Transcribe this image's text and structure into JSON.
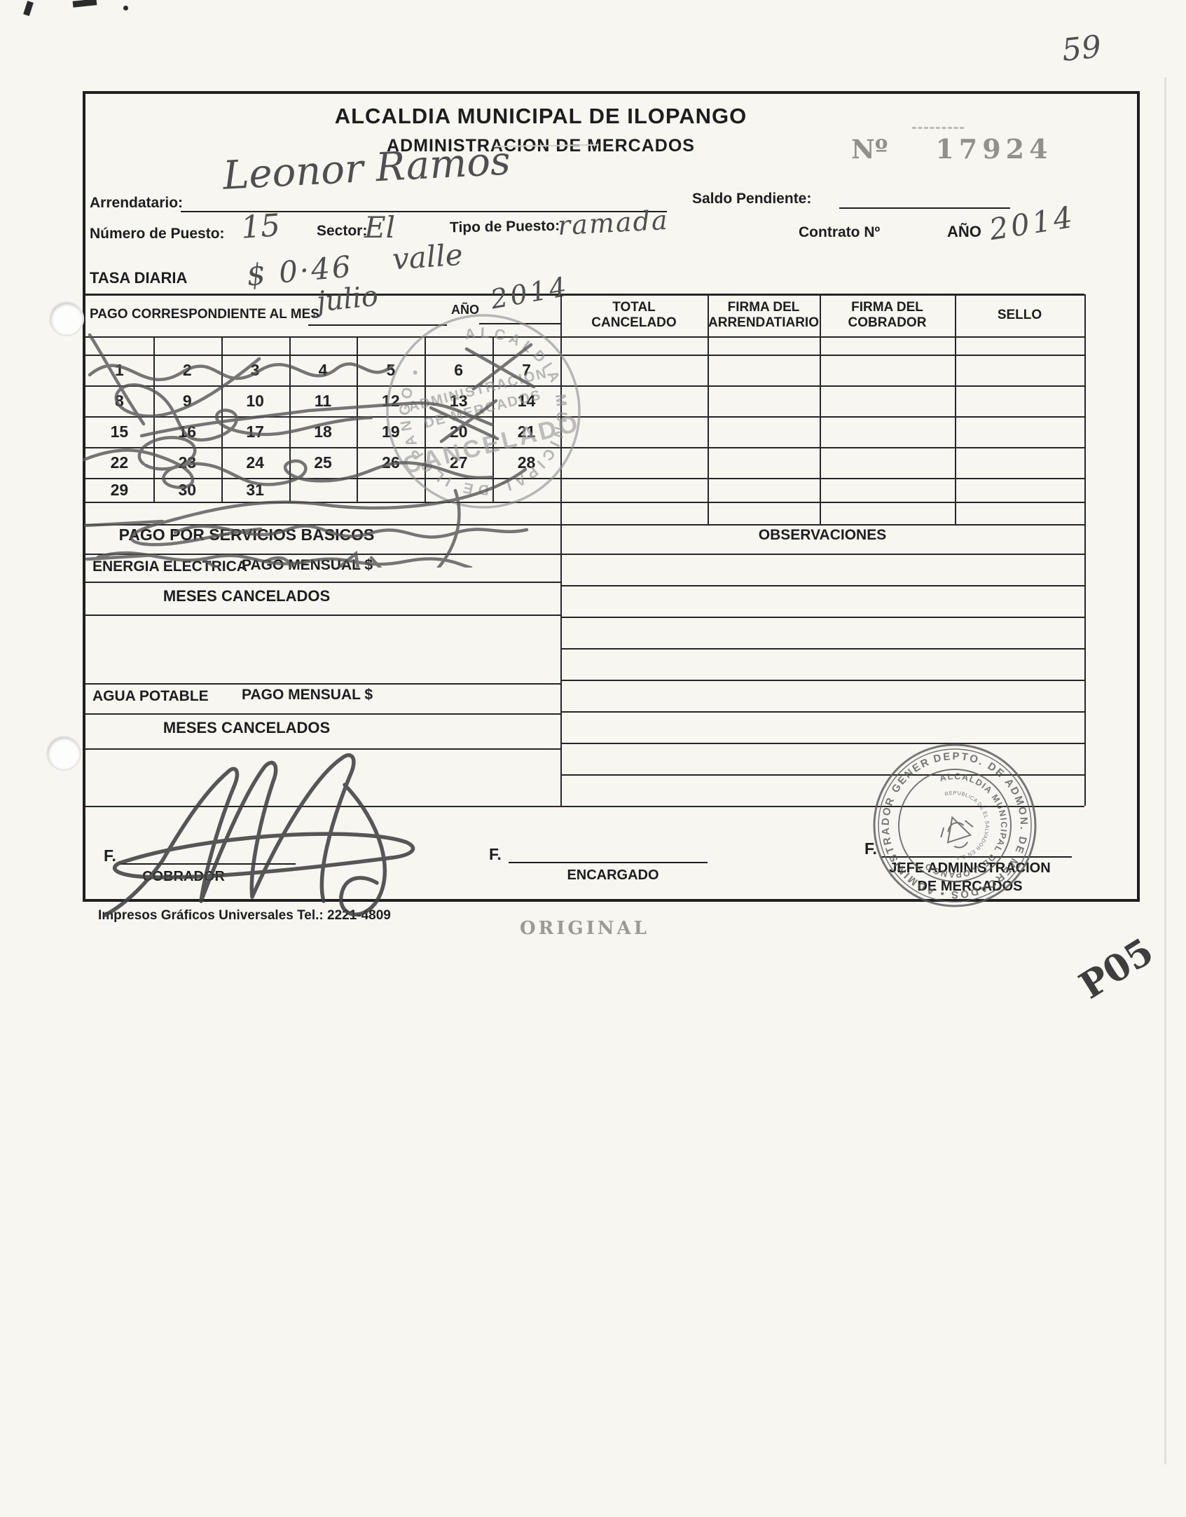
{
  "page": {
    "sheet_number": "59",
    "corner_code": "P05",
    "original_stamp": "ORIGINAL",
    "printer_line": "Impresos Gráficos Universales Tel.: 2221-4809"
  },
  "header": {
    "title": "ALCALDIA MUNICIPAL DE ILOPANGO",
    "subtitle": "ADMINISTRACION DE MERCADOS",
    "receipt_no_label": "Nº",
    "receipt_no_value": "17924"
  },
  "fields": {
    "arrendatario_label": "Arrendatario:",
    "arrendatario_value": "Leonor Ramos",
    "saldo_label": "Saldo Pendiente:",
    "saldo_value": "",
    "numero_puesto_label": "Número de Puesto:",
    "numero_puesto_value": "15",
    "sector_label": "Sector:",
    "sector_value_line1": "El",
    "sector_value_line2": "valle",
    "tipo_puesto_label": "Tipo de Puesto:",
    "tipo_puesto_value": "ramada",
    "contrato_label": "Contrato Nº",
    "contrato_value": "",
    "anio_label": "AÑO",
    "anio_value": "2014",
    "tasa_label": "TASA DIARIA",
    "tasa_value": "$ 0·46"
  },
  "payment_table": {
    "month_label": "PAGO CORRESPONDIENTE AL MES",
    "month_value": "julio",
    "year_label": "AÑO",
    "year_value": "2014",
    "columns": [
      {
        "line1": "TOTAL",
        "line2": "CANCELADO"
      },
      {
        "line1": "FIRMA DEL",
        "line2": "ARRENDATIARIO"
      },
      {
        "line1": "FIRMA DEL",
        "line2": "COBRADOR"
      },
      {
        "line1": "SELLO",
        "line2": ""
      }
    ],
    "days": [
      1,
      2,
      3,
      4,
      5,
      6,
      7,
      8,
      9,
      10,
      11,
      12,
      13,
      14,
      15,
      16,
      17,
      18,
      19,
      20,
      21,
      22,
      23,
      24,
      25,
      26,
      27,
      28,
      29,
      30,
      31
    ]
  },
  "services": {
    "title": "PAGO POR SERVICIOS BASICOS",
    "energia_label": "ENERGIA ELECTRICA",
    "energia_pago_label": "PAGO MENSUAL $",
    "meses_label": "MESES CANCELADOS",
    "agua_label": "AGUA POTABLE",
    "agua_pago_label": "PAGO MENSUAL $",
    "meses2_label": "MESES CANCELADOS",
    "observaciones_title": "OBSERVACIONES"
  },
  "signatures": {
    "f_label": "F.",
    "cobrador_title": "COBRADOR",
    "encargado_title": "ENCARGADO",
    "jefe_title_line1": "JEFE ADMINISTRACION",
    "jefe_title_line2": "DE MERCADOS"
  },
  "stamps": {
    "cancelado": {
      "ring_text": "ALCALDIA MUNICIPAL DE ILOPANGO •",
      "line1": "ADMINISTRACION",
      "line2": "DE MERCADOS",
      "line3": "CANCELADO"
    },
    "depto": {
      "ring_text": "DEPTO. DE ADMON. DE MERCADOS • ADMINISTRADOR GENERAL •",
      "inner_ring_text": "ALCALDIA MUNICIPAL DE ILOPANGO",
      "inner_small_text": "REPUBLICA DE EL SALVADOR EN C.A."
    }
  },
  "colors": {
    "ink": "#1d1d1d",
    "pen": "#4f4f4f",
    "stamp_gray": "#8f8f8f",
    "stamp_dark": "#5a5a5a",
    "receipt_no_gray": "#93908a"
  }
}
